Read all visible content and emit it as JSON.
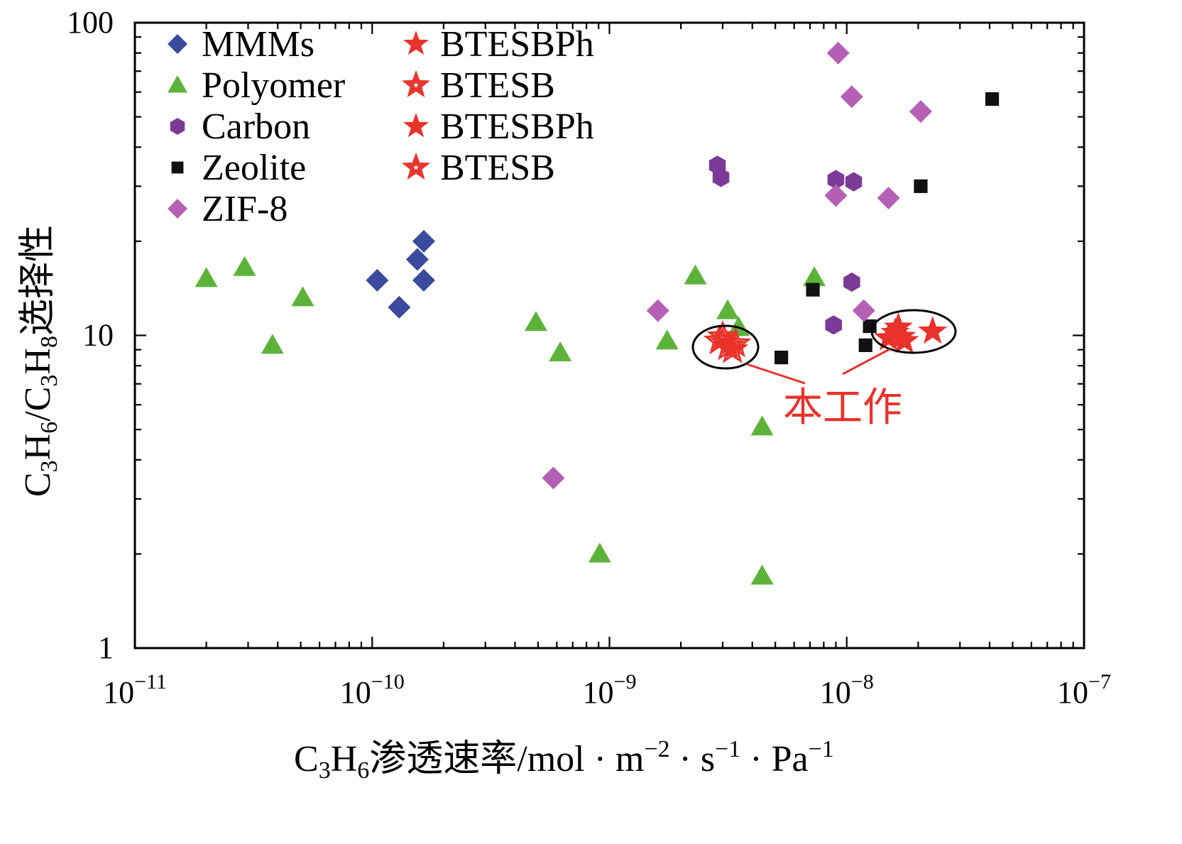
{
  "chart_data": {
    "type": "scatter",
    "xscale": "log",
    "yscale": "log",
    "xlim": [
      1e-11,
      1e-07
    ],
    "ylim": [
      1,
      100
    ],
    "x_ticks": [
      {
        "value": 1e-11,
        "base": "10",
        "exp": "−11"
      },
      {
        "value": 1e-10,
        "base": "10",
        "exp": "−10"
      },
      {
        "value": 1e-09,
        "base": "10",
        "exp": "−9"
      },
      {
        "value": 1e-08,
        "base": "10",
        "exp": "−8"
      },
      {
        "value": 1e-07,
        "base": "10",
        "exp": "−7"
      }
    ],
    "y_ticks": [
      {
        "value": 1,
        "label": "1"
      },
      {
        "value": 10,
        "label": "10"
      },
      {
        "value": 100,
        "label": "100"
      }
    ],
    "xlabel": {
      "pre": "C",
      "sub1": "3",
      "mid": "H",
      "sub2": "6",
      "rest": "渗透速率/mol · m",
      "sup1": "−2",
      "rest2": " · s",
      "sup2": "−1",
      "rest3": " · Pa",
      "sup3": "−1"
    },
    "ylabel": {
      "c": "C",
      "s3": "3",
      "h": "H",
      "s6": "6",
      "slash": "/C",
      "s3b": "3",
      "h2": "H",
      "s8": "8",
      "cn": "选择性"
    },
    "annotation": "本工作",
    "series": [
      {
        "name": "MMMs",
        "marker": "diamond",
        "color": "#3a4a9c",
        "points": [
          [
            1.05e-10,
            15
          ],
          [
            1.3e-10,
            12.3
          ],
          [
            1.55e-10,
            17.5
          ],
          [
            1.65e-10,
            20
          ],
          [
            1.65e-10,
            15
          ]
        ]
      },
      {
        "name": "Polyomer",
        "marker": "triangle",
        "color": "#5db33a",
        "points": [
          [
            2e-11,
            15.2
          ],
          [
            2.9e-11,
            16.5
          ],
          [
            3.8e-11,
            9.3
          ],
          [
            5.1e-11,
            13.2
          ],
          [
            4.9e-10,
            11
          ],
          [
            6.2e-10,
            8.8
          ],
          [
            9.1e-10,
            2
          ],
          [
            1.75e-09,
            9.6
          ],
          [
            2.3e-09,
            15.5
          ],
          [
            3.15e-09,
            12
          ],
          [
            3.5e-09,
            10.6
          ],
          [
            4.4e-09,
            5.1
          ],
          [
            4.4e-09,
            1.7
          ],
          [
            7.3e-09,
            15.3
          ]
        ]
      },
      {
        "name": "Carbon",
        "marker": "hexagon",
        "color": "#7b3a96",
        "points": [
          [
            2.85e-09,
            35
          ],
          [
            2.95e-09,
            32
          ],
          [
            8.8e-09,
            10.8
          ],
          [
            9e-09,
            31.5
          ],
          [
            1.07e-08,
            31
          ],
          [
            1.05e-08,
            14.8
          ]
        ]
      },
      {
        "name": "Zeolite",
        "marker": "square",
        "color": "#111111",
        "points": [
          [
            5.3e-09,
            8.5
          ],
          [
            7.2e-09,
            14
          ],
          [
            1.2e-08,
            9.3
          ],
          [
            1.25e-08,
            10.7
          ],
          [
            2.05e-08,
            30
          ],
          [
            4.1e-08,
            57
          ]
        ]
      },
      {
        "name": "ZIF-8",
        "marker": "diamond",
        "color": "#b560b4",
        "points": [
          [
            5.8e-10,
            3.5
          ],
          [
            1.6e-09,
            12
          ],
          [
            9e-09,
            28
          ],
          [
            9.2e-09,
            80
          ],
          [
            1.05e-08,
            58
          ],
          [
            1.18e-08,
            12
          ],
          [
            1.5e-08,
            27.5
          ],
          [
            2.05e-08,
            52
          ]
        ]
      },
      {
        "name": "BTESBPh",
        "marker": "star-filled",
        "color": "#e8322b",
        "points": [
          [
            1.5e-08,
            9.8
          ],
          [
            1.6e-08,
            10.2
          ],
          [
            1.75e-08,
            9.6
          ],
          [
            2.3e-08,
            10.3
          ]
        ]
      },
      {
        "name": "BTESB",
        "marker": "star-open",
        "color": "#e8322b",
        "points": [
          [
            2.9e-09,
            9.6
          ],
          [
            3.15e-09,
            9.2
          ],
          [
            3.4e-09,
            9.4
          ]
        ]
      },
      {
        "name": "BTESBPh",
        "marker": "star-filled",
        "color": "#e8322b",
        "points": [
          [
            1.65e-08,
            10.6
          ],
          [
            1.7e-08,
            9.9
          ]
        ]
      },
      {
        "name": "BTESB",
        "marker": "star-open",
        "color": "#e8322b",
        "points": [
          [
            3e-09,
            9.9
          ],
          [
            3.3e-09,
            9.0
          ]
        ]
      }
    ]
  }
}
